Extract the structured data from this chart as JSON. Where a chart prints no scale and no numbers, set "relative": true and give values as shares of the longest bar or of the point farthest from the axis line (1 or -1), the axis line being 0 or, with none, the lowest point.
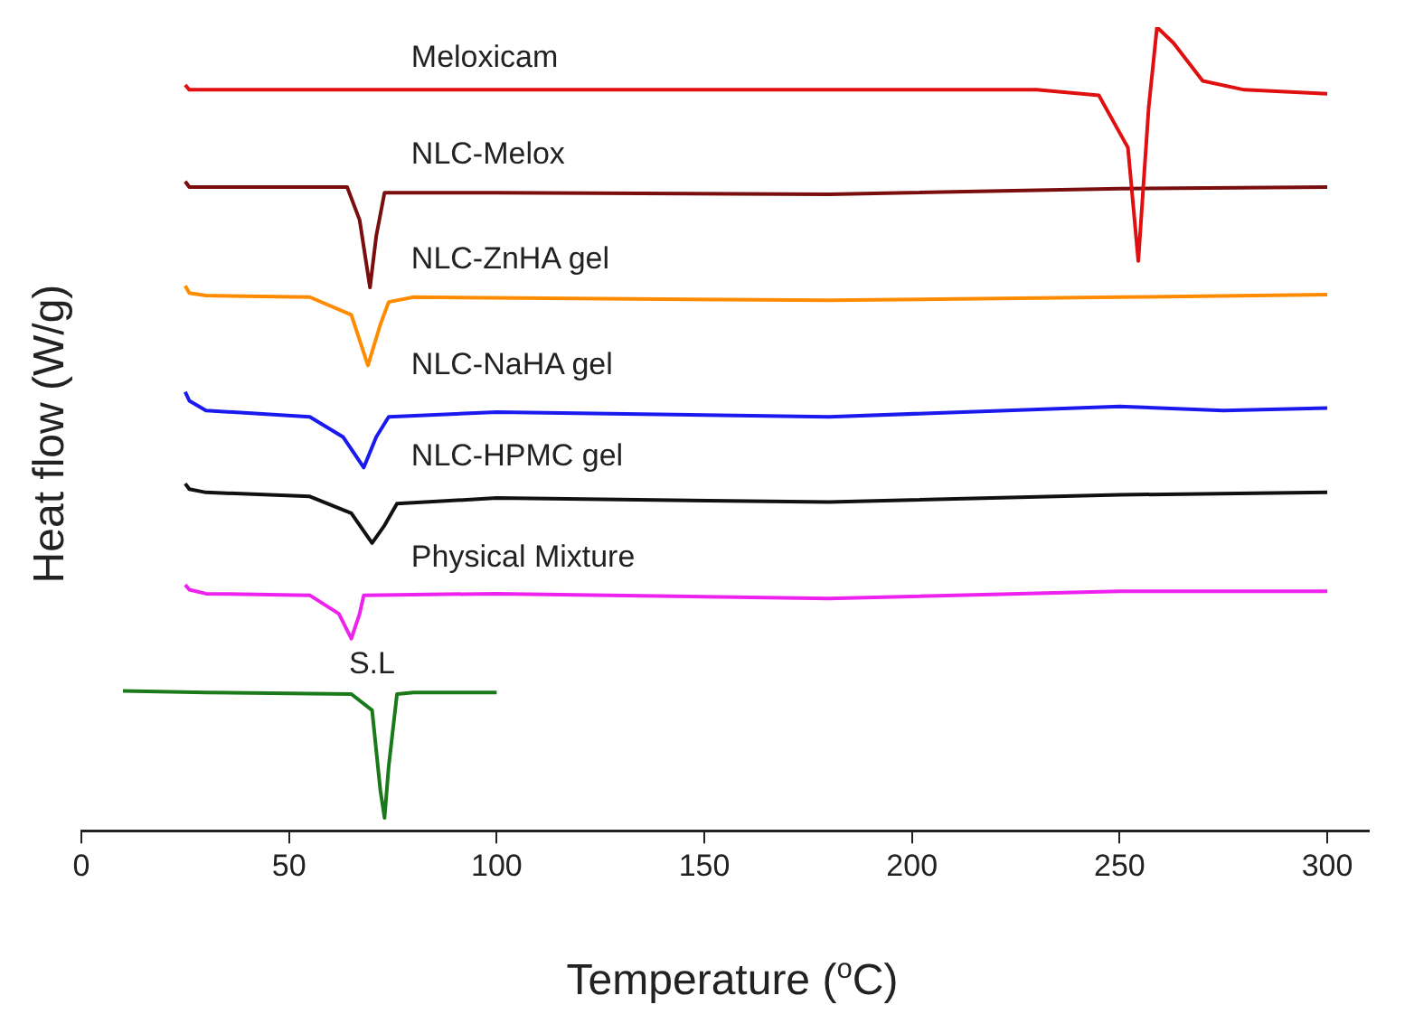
{
  "chart_data": {
    "type": "line",
    "relative": true,
    "xlabel": "Temperature ($^{o}$C)",
    "ylabel": "Heat flow (W/g)",
    "xlim": [
      0,
      310
    ],
    "xticks": [
      0,
      50,
      100,
      150,
      200,
      250,
      300
    ],
    "grid": false,
    "legend": false,
    "series": [
      {
        "name": "Meloxicam",
        "color": "#e01010",
        "x": [
          25,
          26,
          30,
          100,
          230,
          245,
          252,
          254.5,
          257,
          259,
          263,
          270,
          280,
          300
        ],
        "values": [
          0.928,
          0.922,
          0.922,
          0.922,
          0.922,
          0.915,
          0.85,
          0.709,
          0.9,
          1,
          0.98,
          0.933,
          0.922,
          0.917
        ]
      },
      {
        "name": "NLC-Melox",
        "color": "#7a0e0e",
        "x": [
          25,
          26,
          30,
          64,
          67,
          69.5,
          71,
          73,
          100,
          180,
          250,
          300
        ],
        "values": [
          0.808,
          0.801,
          0.801,
          0.801,
          0.76,
          0.676,
          0.74,
          0.794,
          0.794,
          0.792,
          0.799,
          0.801
        ]
      },
      {
        "name": "NLC-ZnHA gel",
        "color": "#ff8c00",
        "x": [
          25,
          26,
          30,
          55,
          65,
          69,
          72,
          74,
          80,
          180,
          250,
          300
        ],
        "values": [
          0.678,
          0.669,
          0.666,
          0.664,
          0.642,
          0.579,
          0.63,
          0.658,
          0.664,
          0.66,
          0.664,
          0.667
        ]
      },
      {
        "name": "NLC-NaHA gel",
        "color": "#1a1aee",
        "x": [
          25,
          26,
          30,
          55,
          63,
          68,
          71,
          74,
          100,
          180,
          250,
          275,
          300
        ],
        "values": [
          0.546,
          0.535,
          0.523,
          0.515,
          0.49,
          0.452,
          0.49,
          0.515,
          0.521,
          0.515,
          0.528,
          0.523,
          0.526
        ]
      },
      {
        "name": "NLC-HPMC gel",
        "color": "#111111",
        "x": [
          25,
          26,
          30,
          55,
          65,
          70,
          73,
          76,
          100,
          180,
          250,
          300
        ],
        "values": [
          0.432,
          0.425,
          0.421,
          0.416,
          0.395,
          0.358,
          0.38,
          0.407,
          0.414,
          0.409,
          0.418,
          0.421
        ]
      },
      {
        "name": "Physical Mixture",
        "color": "#ee22ee",
        "x": [
          25,
          26,
          30,
          55,
          62,
          65,
          67,
          68,
          100,
          180,
          250,
          300
        ],
        "values": [
          0.306,
          0.3,
          0.295,
          0.293,
          0.27,
          0.239,
          0.27,
          0.293,
          0.295,
          0.289,
          0.298,
          0.298
        ]
      },
      {
        "name": "S.L",
        "color": "#1a7a1a",
        "x": [
          10,
          30,
          65,
          70,
          72,
          73,
          74,
          76,
          80,
          100
        ],
        "values": [
          0.174,
          0.172,
          0.17,
          0.15,
          0.05,
          0.016,
          0.08,
          0.17,
          0.172,
          0.172
        ]
      }
    ]
  }
}
